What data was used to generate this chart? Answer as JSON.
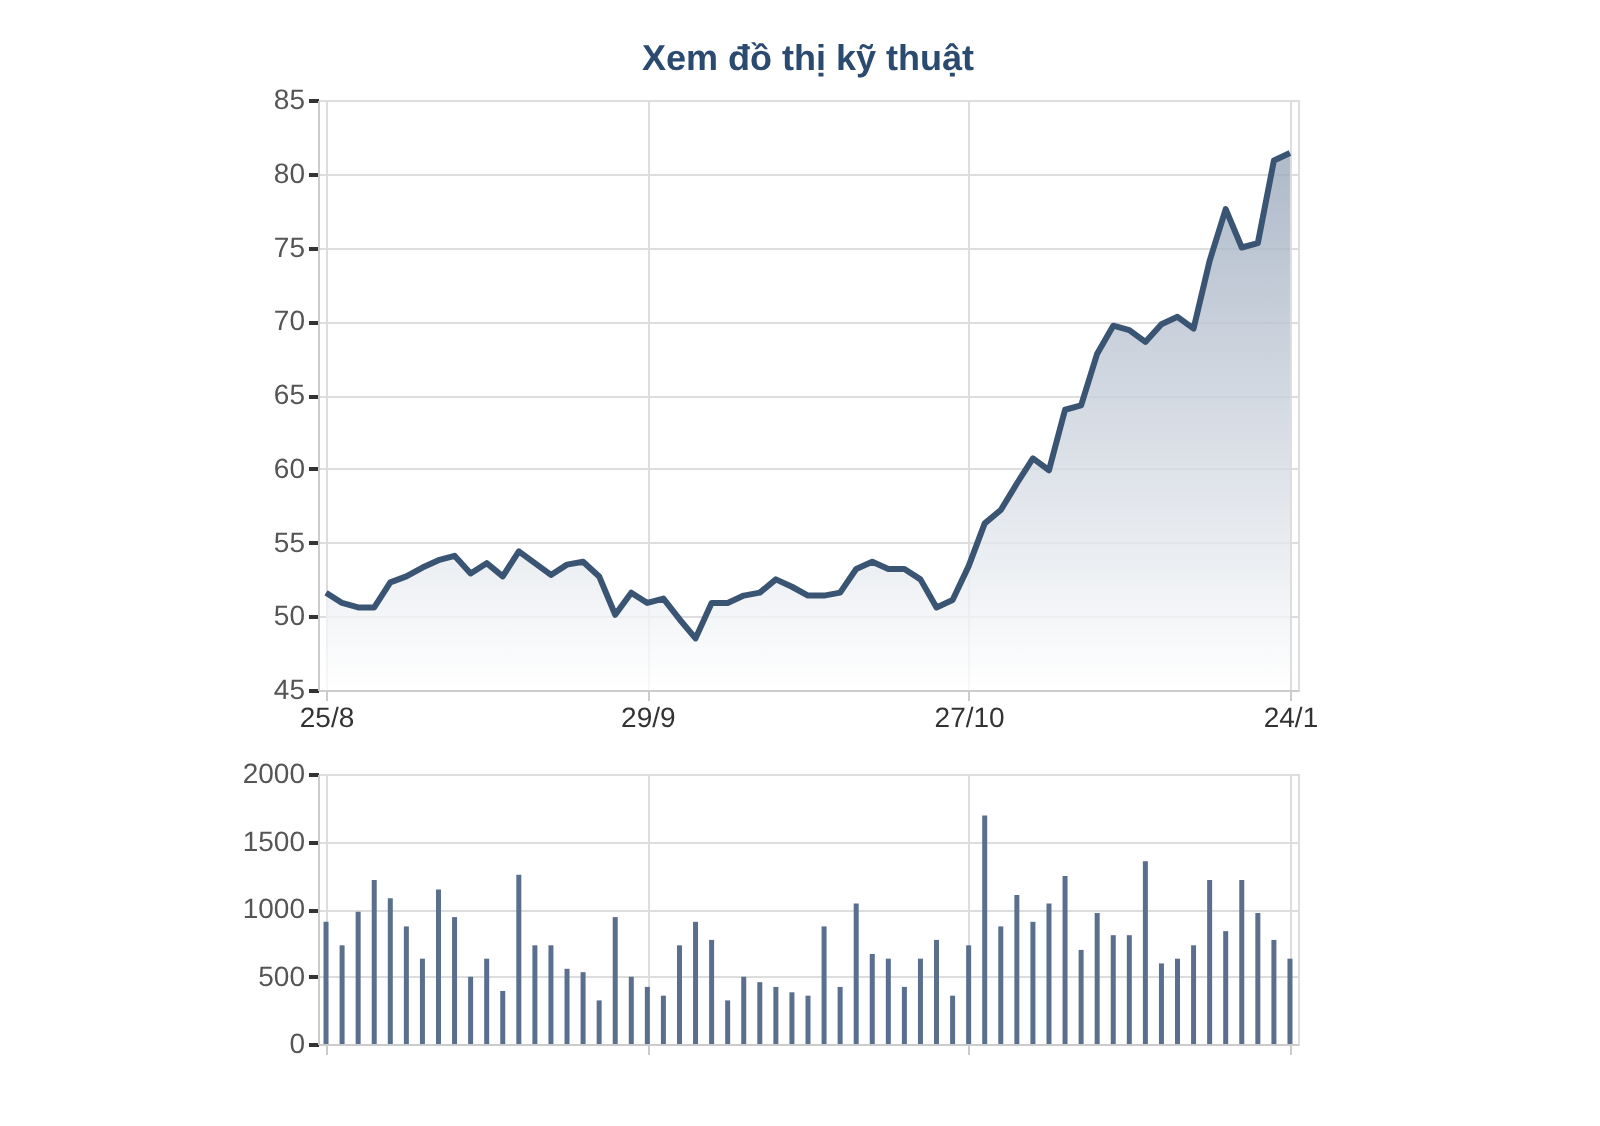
{
  "chart_data": [
    {
      "type": "area",
      "title": "Xem đồ thị kỹ thuật",
      "categories": [
        "25/8",
        null,
        null,
        null,
        null,
        null,
        null,
        null,
        null,
        null,
        null,
        null,
        null,
        null,
        null,
        null,
        null,
        null,
        null,
        null,
        "29/9",
        null,
        null,
        null,
        null,
        null,
        null,
        null,
        null,
        null,
        null,
        null,
        null,
        null,
        null,
        null,
        null,
        null,
        null,
        null,
        "27/10",
        null,
        null,
        null,
        null,
        null,
        null,
        null,
        null,
        null,
        null,
        null,
        null,
        null,
        null,
        null,
        null,
        null,
        null,
        null,
        "24/1"
      ],
      "series": [
        {
          "color": "#3a5573",
          "values": [
            51.6,
            50.9,
            50.6,
            50.6,
            52.3,
            52.7,
            53.3,
            53.8,
            54.1,
            52.9,
            53.6,
            52.7,
            54.4,
            53.6,
            52.8,
            53.5,
            53.7,
            52.7,
            50.1,
            51.6,
            50.9,
            51.2,
            49.8,
            48.5,
            50.9,
            50.9,
            51.4,
            51.6,
            52.5,
            52.0,
            51.4,
            51.4,
            51.6,
            53.2,
            53.7,
            53.2,
            53.2,
            52.5,
            50.6,
            51.1,
            53.4,
            56.3,
            57.2,
            59.0,
            60.7,
            59.9,
            64.0,
            64.3,
            67.8,
            69.7,
            69.4,
            68.6,
            69.8,
            70.3,
            69.5,
            74.1,
            77.6,
            75.0,
            75.3,
            80.9,
            81.4
          ]
        }
      ],
      "ylim": [
        45,
        85
      ],
      "yticks": [
        45,
        50,
        55,
        60,
        65,
        70,
        75,
        80,
        85
      ],
      "grid": true
    },
    {
      "type": "bar",
      "categories": [
        null,
        null,
        null,
        null,
        null,
        null,
        null,
        null,
        null,
        null,
        null,
        null,
        null,
        null,
        null,
        null,
        null,
        null,
        null,
        null,
        null,
        null,
        null,
        null,
        null,
        null,
        null,
        null,
        null,
        null,
        null,
        null,
        null,
        null,
        null,
        null,
        null,
        null,
        null,
        null,
        null,
        null,
        null,
        null,
        null,
        null,
        null,
        null,
        null,
        null,
        null,
        null,
        null,
        null,
        null,
        null,
        null,
        null,
        null,
        null,
        null
      ],
      "values": [
        905,
        731,
        980,
        1214,
        1080,
        871,
        632,
        1144,
        940,
        498,
        632,
        393,
        1254,
        731,
        731,
        557,
        532,
        323,
        940,
        498,
        423,
        358,
        731,
        905,
        771,
        323,
        498,
        458,
        423,
        383,
        358,
        871,
        423,
        1040,
        667,
        632,
        423,
        632,
        771,
        358,
        731,
        1692,
        871,
        1104,
        905,
        1040,
        1244,
        697,
        970,
        806,
        806,
        1353,
        597,
        632,
        731,
        1214,
        836,
        1214,
        970,
        771,
        632
      ],
      "color": "#5a6e8e",
      "ylim": [
        0,
        2000
      ],
      "yticks": [
        0,
        500,
        1000,
        1500,
        2000
      ],
      "grid": true,
      "tick_labels": "y"
    }
  ]
}
